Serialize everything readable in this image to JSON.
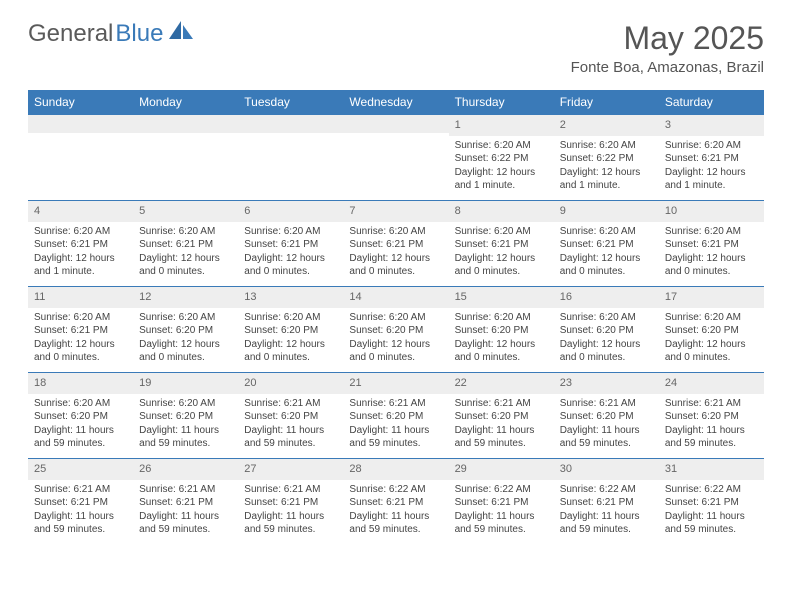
{
  "logo": {
    "text1": "General",
    "text2": "Blue"
  },
  "title": "May 2025",
  "location": "Fonte Boa, Amazonas, Brazil",
  "colors": {
    "header_bg": "#3a7ab8",
    "header_text": "#ffffff",
    "daynum_bg": "#eeeeee",
    "border": "#3a7ab8",
    "body_text": "#444444",
    "title_text": "#555555"
  },
  "weekdays": [
    "Sunday",
    "Monday",
    "Tuesday",
    "Wednesday",
    "Thursday",
    "Friday",
    "Saturday"
  ],
  "weeks": [
    [
      {
        "n": "",
        "lines": []
      },
      {
        "n": "",
        "lines": []
      },
      {
        "n": "",
        "lines": []
      },
      {
        "n": "",
        "lines": []
      },
      {
        "n": "1",
        "lines": [
          "Sunrise: 6:20 AM",
          "Sunset: 6:22 PM",
          "Daylight: 12 hours and 1 minute."
        ]
      },
      {
        "n": "2",
        "lines": [
          "Sunrise: 6:20 AM",
          "Sunset: 6:22 PM",
          "Daylight: 12 hours and 1 minute."
        ]
      },
      {
        "n": "3",
        "lines": [
          "Sunrise: 6:20 AM",
          "Sunset: 6:21 PM",
          "Daylight: 12 hours and 1 minute."
        ]
      }
    ],
    [
      {
        "n": "4",
        "lines": [
          "Sunrise: 6:20 AM",
          "Sunset: 6:21 PM",
          "Daylight: 12 hours and 1 minute."
        ]
      },
      {
        "n": "5",
        "lines": [
          "Sunrise: 6:20 AM",
          "Sunset: 6:21 PM",
          "Daylight: 12 hours and 0 minutes."
        ]
      },
      {
        "n": "6",
        "lines": [
          "Sunrise: 6:20 AM",
          "Sunset: 6:21 PM",
          "Daylight: 12 hours and 0 minutes."
        ]
      },
      {
        "n": "7",
        "lines": [
          "Sunrise: 6:20 AM",
          "Sunset: 6:21 PM",
          "Daylight: 12 hours and 0 minutes."
        ]
      },
      {
        "n": "8",
        "lines": [
          "Sunrise: 6:20 AM",
          "Sunset: 6:21 PM",
          "Daylight: 12 hours and 0 minutes."
        ]
      },
      {
        "n": "9",
        "lines": [
          "Sunrise: 6:20 AM",
          "Sunset: 6:21 PM",
          "Daylight: 12 hours and 0 minutes."
        ]
      },
      {
        "n": "10",
        "lines": [
          "Sunrise: 6:20 AM",
          "Sunset: 6:21 PM",
          "Daylight: 12 hours and 0 minutes."
        ]
      }
    ],
    [
      {
        "n": "11",
        "lines": [
          "Sunrise: 6:20 AM",
          "Sunset: 6:21 PM",
          "Daylight: 12 hours and 0 minutes."
        ]
      },
      {
        "n": "12",
        "lines": [
          "Sunrise: 6:20 AM",
          "Sunset: 6:20 PM",
          "Daylight: 12 hours and 0 minutes."
        ]
      },
      {
        "n": "13",
        "lines": [
          "Sunrise: 6:20 AM",
          "Sunset: 6:20 PM",
          "Daylight: 12 hours and 0 minutes."
        ]
      },
      {
        "n": "14",
        "lines": [
          "Sunrise: 6:20 AM",
          "Sunset: 6:20 PM",
          "Daylight: 12 hours and 0 minutes."
        ]
      },
      {
        "n": "15",
        "lines": [
          "Sunrise: 6:20 AM",
          "Sunset: 6:20 PM",
          "Daylight: 12 hours and 0 minutes."
        ]
      },
      {
        "n": "16",
        "lines": [
          "Sunrise: 6:20 AM",
          "Sunset: 6:20 PM",
          "Daylight: 12 hours and 0 minutes."
        ]
      },
      {
        "n": "17",
        "lines": [
          "Sunrise: 6:20 AM",
          "Sunset: 6:20 PM",
          "Daylight: 12 hours and 0 minutes."
        ]
      }
    ],
    [
      {
        "n": "18",
        "lines": [
          "Sunrise: 6:20 AM",
          "Sunset: 6:20 PM",
          "Daylight: 11 hours and 59 minutes."
        ]
      },
      {
        "n": "19",
        "lines": [
          "Sunrise: 6:20 AM",
          "Sunset: 6:20 PM",
          "Daylight: 11 hours and 59 minutes."
        ]
      },
      {
        "n": "20",
        "lines": [
          "Sunrise: 6:21 AM",
          "Sunset: 6:20 PM",
          "Daylight: 11 hours and 59 minutes."
        ]
      },
      {
        "n": "21",
        "lines": [
          "Sunrise: 6:21 AM",
          "Sunset: 6:20 PM",
          "Daylight: 11 hours and 59 minutes."
        ]
      },
      {
        "n": "22",
        "lines": [
          "Sunrise: 6:21 AM",
          "Sunset: 6:20 PM",
          "Daylight: 11 hours and 59 minutes."
        ]
      },
      {
        "n": "23",
        "lines": [
          "Sunrise: 6:21 AM",
          "Sunset: 6:20 PM",
          "Daylight: 11 hours and 59 minutes."
        ]
      },
      {
        "n": "24",
        "lines": [
          "Sunrise: 6:21 AM",
          "Sunset: 6:20 PM",
          "Daylight: 11 hours and 59 minutes."
        ]
      }
    ],
    [
      {
        "n": "25",
        "lines": [
          "Sunrise: 6:21 AM",
          "Sunset: 6:21 PM",
          "Daylight: 11 hours and 59 minutes."
        ]
      },
      {
        "n": "26",
        "lines": [
          "Sunrise: 6:21 AM",
          "Sunset: 6:21 PM",
          "Daylight: 11 hours and 59 minutes."
        ]
      },
      {
        "n": "27",
        "lines": [
          "Sunrise: 6:21 AM",
          "Sunset: 6:21 PM",
          "Daylight: 11 hours and 59 minutes."
        ]
      },
      {
        "n": "28",
        "lines": [
          "Sunrise: 6:22 AM",
          "Sunset: 6:21 PM",
          "Daylight: 11 hours and 59 minutes."
        ]
      },
      {
        "n": "29",
        "lines": [
          "Sunrise: 6:22 AM",
          "Sunset: 6:21 PM",
          "Daylight: 11 hours and 59 minutes."
        ]
      },
      {
        "n": "30",
        "lines": [
          "Sunrise: 6:22 AM",
          "Sunset: 6:21 PM",
          "Daylight: 11 hours and 59 minutes."
        ]
      },
      {
        "n": "31",
        "lines": [
          "Sunrise: 6:22 AM",
          "Sunset: 6:21 PM",
          "Daylight: 11 hours and 59 minutes."
        ]
      }
    ]
  ]
}
